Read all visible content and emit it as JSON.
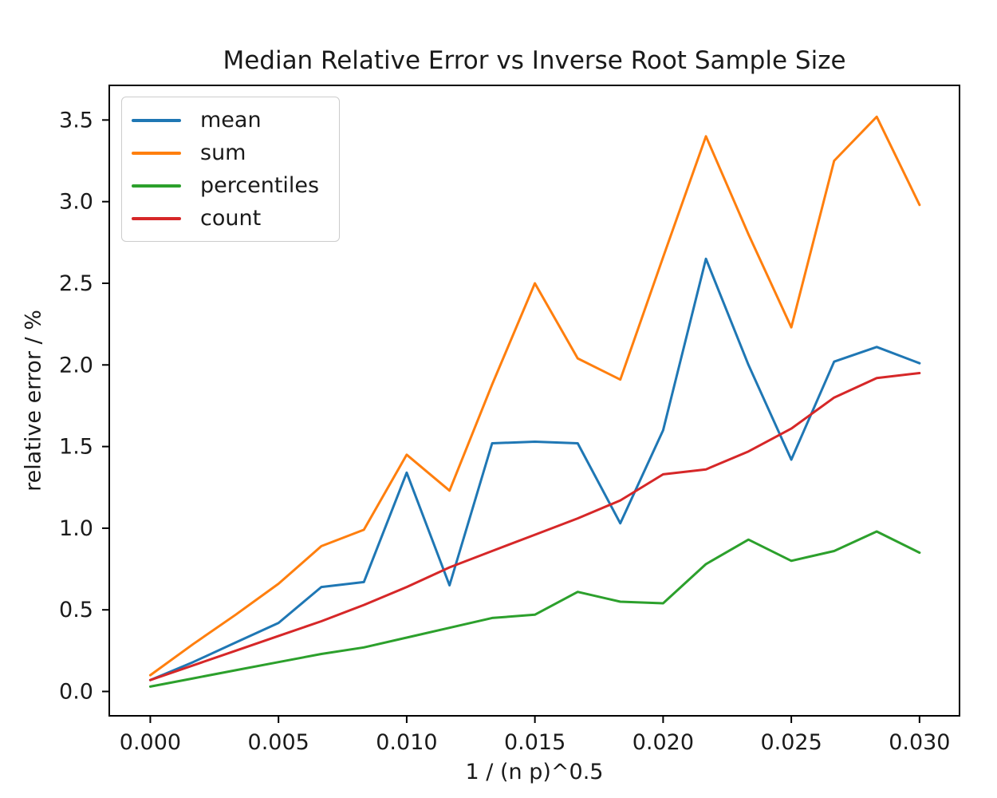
{
  "chart_data": {
    "type": "line",
    "title": "Median Relative Error vs Inverse Root Sample Size",
    "xlabel": "1 / (n p)^0.5",
    "ylabel": "relative error / %",
    "grid": false,
    "legend": {
      "position": "upper left"
    },
    "xlim": [
      -0.0016,
      0.03156
    ],
    "ylim": [
      -0.149,
      3.712
    ],
    "x_ticks": {
      "values": [
        0.0,
        0.005,
        0.01,
        0.015,
        0.02,
        0.025,
        0.03
      ],
      "labels": [
        "0.000",
        "0.005",
        "0.010",
        "0.015",
        "0.020",
        "0.025",
        "0.030"
      ]
    },
    "y_ticks": {
      "values": [
        0.0,
        0.5,
        1.0,
        1.5,
        2.0,
        2.5,
        3.0,
        3.5
      ],
      "labels": [
        "0.0",
        "0.5",
        "1.0",
        "1.5",
        "2.0",
        "2.5",
        "3.0",
        "3.5"
      ]
    },
    "x": [
      0.0,
      0.00167,
      0.00333,
      0.005,
      0.00667,
      0.00833,
      0.01,
      0.01167,
      0.01333,
      0.015,
      0.01667,
      0.01833,
      0.02,
      0.02167,
      0.02333,
      0.025,
      0.02667,
      0.02833,
      0.03
    ],
    "series": [
      {
        "name": "mean",
        "color": "#1f77b4",
        "values": [
          0.07,
          0.18,
          0.3,
          0.42,
          0.64,
          0.67,
          1.34,
          0.65,
          1.52,
          1.53,
          1.52,
          1.03,
          1.6,
          2.65,
          2.0,
          1.42,
          2.02,
          2.11,
          2.01
        ]
      },
      {
        "name": "sum",
        "color": "#ff7f0e",
        "values": [
          0.1,
          0.29,
          0.47,
          0.66,
          0.89,
          0.99,
          1.45,
          1.23,
          1.88,
          2.5,
          2.04,
          1.91,
          2.66,
          3.4,
          2.8,
          2.23,
          3.25,
          3.52,
          2.98
        ]
      },
      {
        "name": "percentiles",
        "color": "#2ca02c",
        "values": [
          0.03,
          0.08,
          0.13,
          0.18,
          0.23,
          0.27,
          0.33,
          0.39,
          0.45,
          0.47,
          0.61,
          0.55,
          0.54,
          0.78,
          0.93,
          0.8,
          0.86,
          0.98,
          0.85
        ]
      },
      {
        "name": "count",
        "color": "#d62728",
        "values": [
          0.07,
          0.16,
          0.25,
          0.34,
          0.43,
          0.53,
          0.64,
          0.76,
          0.86,
          0.96,
          1.06,
          1.17,
          1.33,
          1.36,
          1.47,
          1.61,
          1.8,
          1.92,
          1.95
        ]
      }
    ]
  }
}
